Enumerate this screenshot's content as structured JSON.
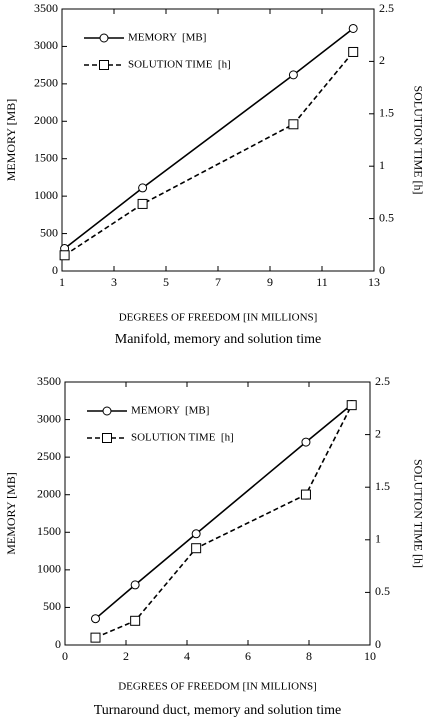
{
  "chart_data": [
    {
      "type": "line",
      "caption": "Manifold, memory and solution time",
      "xlabel": "DEGREES OF FREEDOM [IN MILLIONS]",
      "ylabel": "MEMORY [MB]",
      "y2label": "SOLUTION TIME [h]",
      "x": [
        1.1,
        4.1,
        9.9,
        12.2
      ],
      "series": [
        {
          "name": "MEMORY  [MB]",
          "color": "#000000",
          "marker": "circle",
          "line_style": "solid",
          "values": [
            300,
            1110,
            2620,
            3240
          ]
        },
        {
          "name": "SOLUTION TIME  [h]",
          "color": "#000000",
          "marker": "square",
          "line_style": "dashed",
          "axis": "y2",
          "values": [
            0.15,
            0.64,
            1.4,
            2.09
          ]
        }
      ],
      "xlim": [
        1,
        13
      ],
      "xticks": [
        1,
        3,
        5,
        7,
        9,
        11,
        13
      ],
      "ylim": [
        0,
        3500
      ],
      "yticks": [
        0,
        500,
        1000,
        1500,
        2000,
        2500,
        3000,
        3500
      ],
      "y2lim": [
        0,
        2.5
      ],
      "y2ticks": [
        0,
        0.5,
        1,
        1.5,
        2,
        2.5
      ],
      "grid": false,
      "legend": "upper left"
    },
    {
      "type": "line",
      "caption": "Turnaround duct, memory and solution time",
      "xlabel": "DEGREES OF FREEDOM [IN MILLIONS]",
      "ylabel": "MEMORY [MB]",
      "y2label": "SOLUTION TIME [h]",
      "x": [
        1,
        2.3,
        4.3,
        7.9,
        9.4
      ],
      "series": [
        {
          "name": "MEMORY  [MB]",
          "color": "#000000",
          "marker": "circle",
          "line_style": "solid",
          "values": [
            350,
            800,
            1480,
            2700,
            3200
          ]
        },
        {
          "name": "SOLUTION TIME  [h]",
          "color": "#000000",
          "marker": "square",
          "line_style": "dashed",
          "axis": "y2",
          "values": [
            0.07,
            0.23,
            0.92,
            1.43,
            2.28
          ]
        }
      ],
      "xlim": [
        0,
        10
      ],
      "xticks": [
        0,
        2,
        4,
        6,
        8,
        10
      ],
      "ylim": [
        0,
        3500
      ],
      "yticks": [
        0,
        500,
        1000,
        1500,
        2000,
        2500,
        3000,
        3500
      ],
      "y2lim": [
        0,
        2.5
      ],
      "y2ticks": [
        0,
        0.5,
        1,
        1.5,
        2,
        2.5
      ],
      "grid": false,
      "legend": "upper left"
    }
  ]
}
